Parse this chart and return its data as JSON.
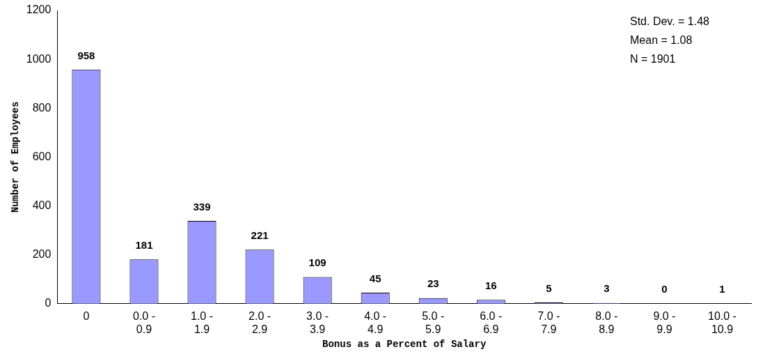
{
  "chart_data": {
    "type": "bar",
    "xlabel": "Bonus as a Percent of Salary",
    "ylabel": "Number of Employees",
    "categories": [
      "0",
      "0.0 - 0.9",
      "1.0 - 1.9",
      "2.0 - 2.9",
      "3.0 - 3.9",
      "4.0 - 4.9",
      "5.0 - 5.9",
      "6.0 - 6.9",
      "7.0 - 7.9",
      "8.0 - 8.9",
      "9.0 - 9.9",
      "10.0 - 10.9"
    ],
    "values": [
      958,
      181,
      339,
      221,
      109,
      45,
      23,
      16,
      5,
      3,
      0,
      1
    ],
    "color": "#9999ff",
    "ylim": [
      0,
      1200
    ],
    "yticks": [
      0,
      200,
      400,
      600,
      800,
      1000,
      1200
    ],
    "grid": false,
    "legend": false,
    "data_labels": true,
    "annotations": [
      "Std. Dev. = 1.48",
      "Mean = 1.08",
      "N = 1901"
    ]
  }
}
